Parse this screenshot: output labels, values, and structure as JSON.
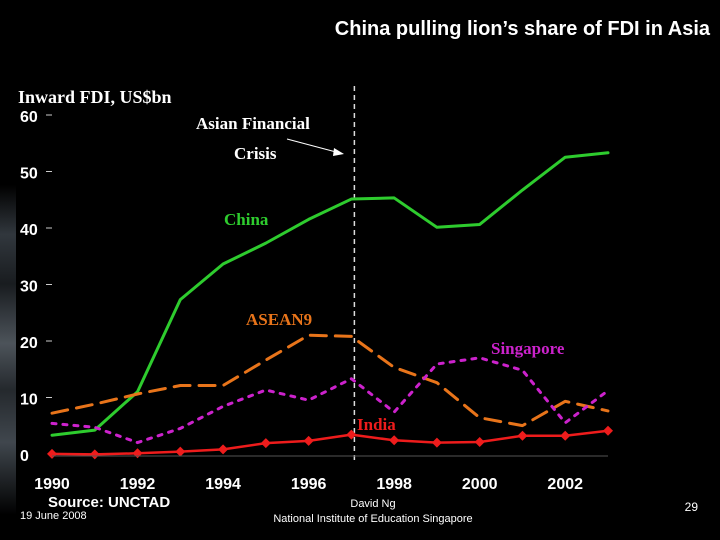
{
  "slide": {
    "title": "China pulling lion’s share of FDI in Asia",
    "source": "Source: UNCTAD",
    "date": "19 June 2008",
    "author": "David Ng",
    "institution": "National Institute of Education Singapore",
    "page_number": "29"
  },
  "chart_data": {
    "type": "line",
    "title": "China pulling lion’s share of FDI in Asia",
    "ylabel": "Inward FDI, US$bn",
    "xlabel": "",
    "ylim": [
      0,
      60
    ],
    "xlim": [
      1990,
      2003
    ],
    "yticks": [
      "0",
      "10",
      "20",
      "30",
      "40",
      "50",
      "60"
    ],
    "xticks": [
      "1990",
      "1992",
      "1994",
      "1996",
      "1998",
      "2000",
      "2002"
    ],
    "x": [
      1990,
      1991,
      1992,
      1993,
      1994,
      1995,
      1996,
      1997,
      1998,
      1999,
      2000,
      2001,
      2002,
      2003
    ],
    "grid": false,
    "legend": "none",
    "series": [
      {
        "name": "China",
        "color": "#2ecc2e",
        "style": "solid",
        "values": [
          3.5,
          4.4,
          11.2,
          27.5,
          33.8,
          37.5,
          41.7,
          45.3,
          45.5,
          40.3,
          40.8,
          46.9,
          52.7,
          53.5
        ]
      },
      {
        "name": "ASEAN9",
        "color": "#e8741a",
        "style": "dashed",
        "values": [
          7.4,
          9.0,
          10.8,
          12.3,
          12.3,
          16.8,
          21.2,
          21.0,
          15.5,
          12.8,
          6.6,
          5.2,
          9.5,
          7.8
        ]
      },
      {
        "name": "Singapore",
        "color": "#cc22cc",
        "style": "dotted",
        "values": [
          5.6,
          4.9,
          2.2,
          4.7,
          8.6,
          11.5,
          9.7,
          13.5,
          7.6,
          16.1,
          17.2,
          15.0,
          5.7,
          11.4
        ]
      },
      {
        "name": "India",
        "color": "#ee1c1c",
        "style": "solid-marker",
        "values": [
          0.2,
          0.1,
          0.3,
          0.6,
          1.0,
          2.1,
          2.5,
          3.6,
          2.6,
          2.2,
          2.3,
          3.4,
          3.4,
          4.3
        ]
      }
    ],
    "annotations": {
      "event_line_year": 1997,
      "event_label_1": "Asian Financial",
      "event_label_2": "Crisis"
    }
  }
}
